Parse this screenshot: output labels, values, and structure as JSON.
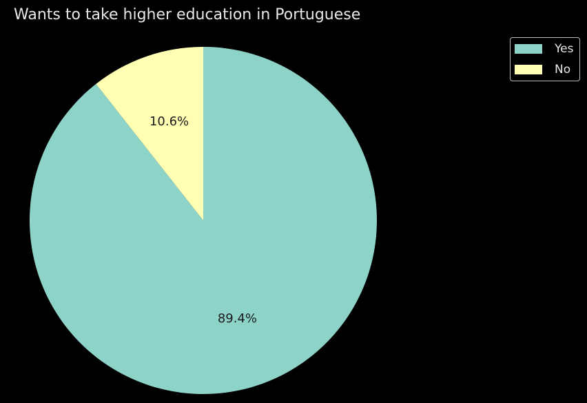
{
  "chart_data": {
    "type": "pie",
    "title": "Wants to take higher education in Portuguese",
    "start_angle_deg": 90,
    "direction": "clockwise",
    "legend_position": "top-right",
    "slices": [
      {
        "label": "Yes",
        "value": 89.4,
        "pct_label": "89.4%",
        "color": "#8dd3c7"
      },
      {
        "label": "No",
        "value": 10.6,
        "pct_label": "10.6%",
        "color": "#ffffb3"
      }
    ]
  },
  "colors": {
    "background": "#000000",
    "text": "#e8e8e8",
    "slice_edge": "#000000"
  }
}
